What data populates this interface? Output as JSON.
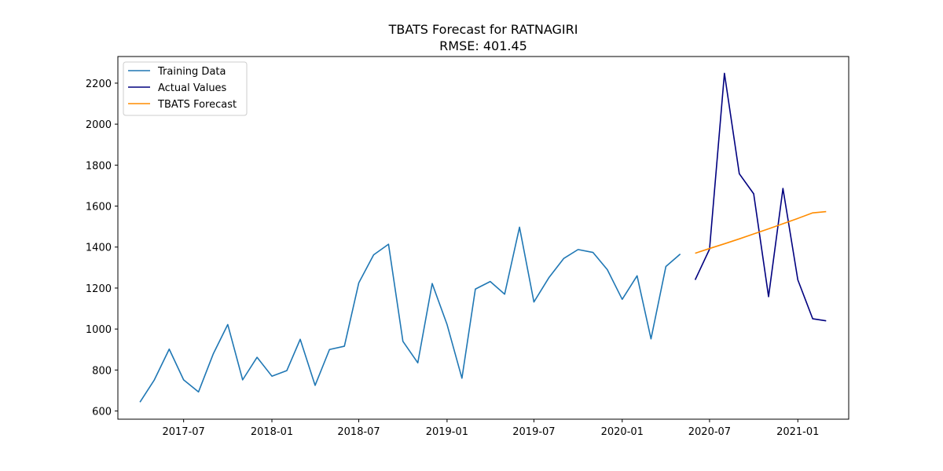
{
  "chart_data": {
    "type": "line",
    "title": "TBATS Forecast for RATNAGIRI",
    "subtitle": "RMSE: 401.45",
    "xlabel": "",
    "ylabel": "",
    "x_axis_type": "date",
    "xlim": [
      "2017-02-14",
      "2021-04-17"
    ],
    "ylim": [
      560,
      2330
    ],
    "x_ticks": [
      {
        "date": "2017-07-01",
        "label": "2017-07"
      },
      {
        "date": "2018-01-01",
        "label": "2018-01"
      },
      {
        "date": "2018-07-01",
        "label": "2018-07"
      },
      {
        "date": "2019-01-01",
        "label": "2019-01"
      },
      {
        "date": "2019-07-01",
        "label": "2019-07"
      },
      {
        "date": "2020-01-01",
        "label": "2020-01"
      },
      {
        "date": "2020-07-01",
        "label": "2020-07"
      },
      {
        "date": "2021-01-01",
        "label": "2021-01"
      }
    ],
    "y_ticks": [
      600,
      800,
      1000,
      1200,
      1400,
      1600,
      1800,
      2000,
      2200
    ],
    "grid": false,
    "legend_position": "top-left",
    "series": [
      {
        "name": "Training Data",
        "color": "#1f77b4",
        "x": [
          "2017-04-01",
          "2017-05-01",
          "2017-06-01",
          "2017-07-01",
          "2017-08-01",
          "2017-09-01",
          "2017-10-01",
          "2017-11-01",
          "2017-12-01",
          "2018-01-01",
          "2018-02-01",
          "2018-03-01",
          "2018-04-01",
          "2018-05-01",
          "2018-06-01",
          "2018-07-01",
          "2018-08-01",
          "2018-09-01",
          "2018-10-01",
          "2018-11-01",
          "2018-12-01",
          "2019-01-01",
          "2019-02-01",
          "2019-03-01",
          "2019-04-01",
          "2019-05-01",
          "2019-06-01",
          "2019-07-01",
          "2019-08-01",
          "2019-09-01",
          "2019-10-01",
          "2019-11-01",
          "2019-12-01",
          "2020-01-01",
          "2020-02-01",
          "2020-03-01",
          "2020-04-01",
          "2020-05-01"
        ],
        "y": [
          643,
          752,
          902,
          752,
          693,
          880,
          1022,
          752,
          862,
          770,
          797,
          950,
          725,
          900,
          916,
          1225,
          1362,
          1414,
          940,
          835,
          1222,
          1022,
          760,
          1195,
          1232,
          1170,
          1497,
          1132,
          1250,
          1344,
          1388,
          1374,
          1290,
          1145,
          1260,
          952,
          1305,
          1366
        ]
      },
      {
        "name": "Actual Values",
        "color": "#00007f",
        "x": [
          "2020-06-01",
          "2020-07-01",
          "2020-08-01",
          "2020-09-01",
          "2020-10-01",
          "2020-11-01",
          "2020-12-01",
          "2021-01-01",
          "2021-02-01",
          "2021-03-01"
        ],
        "y": [
          1240,
          1390,
          2248,
          1758,
          1660,
          1158,
          1686,
          1240,
          1050,
          1040
        ]
      },
      {
        "name": "TBATS Forecast",
        "color": "#ff8c00",
        "x": [
          "2020-06-01",
          "2020-07-01",
          "2020-08-01",
          "2020-09-01",
          "2020-10-01",
          "2020-11-01",
          "2020-12-01",
          "2021-01-01",
          "2021-02-01",
          "2021-03-01"
        ],
        "y": [
          1370,
          1393,
          1416,
          1440,
          1464,
          1489,
          1514,
          1540,
          1567,
          1573
        ]
      }
    ]
  }
}
